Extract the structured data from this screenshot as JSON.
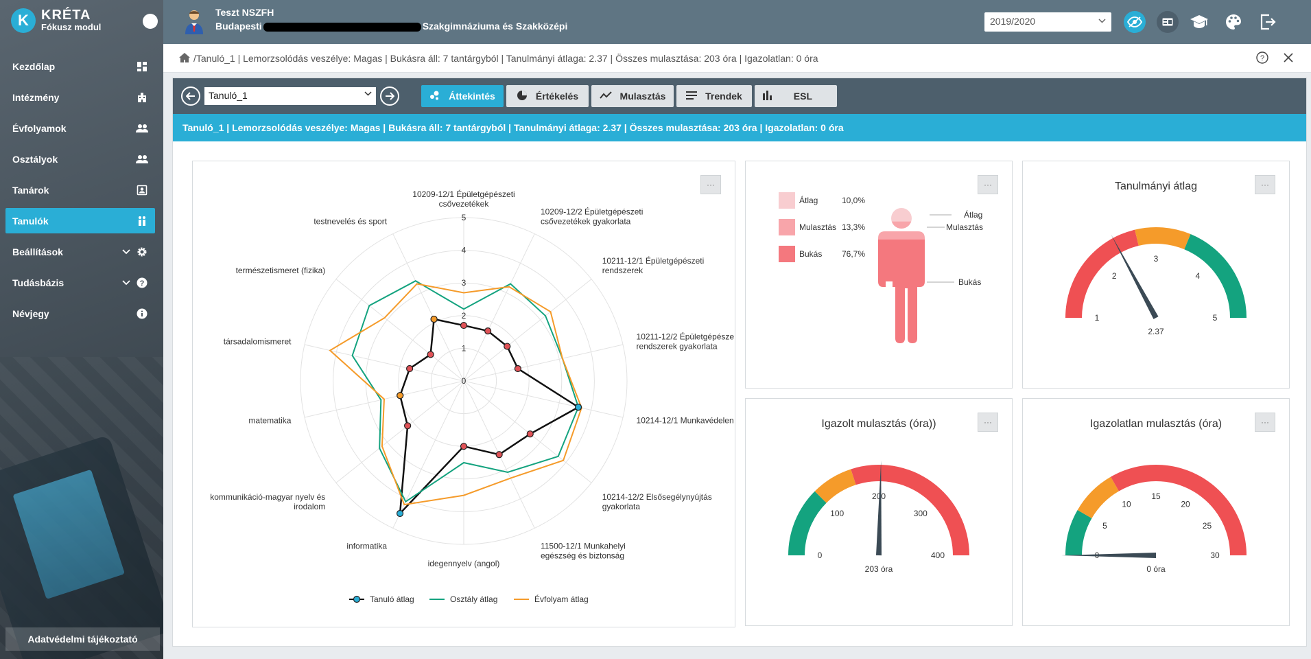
{
  "brand": {
    "name": "KRÉTA",
    "subtitle": "Fókusz modul",
    "logo_letter": "K"
  },
  "sidebar": {
    "items": [
      {
        "label": "Kezdőlap",
        "icon": "dashboard-icon"
      },
      {
        "label": "Intézmény",
        "icon": "building-icon"
      },
      {
        "label": "Évfolyamok",
        "icon": "group-icon"
      },
      {
        "label": "Osztályok",
        "icon": "group-icon"
      },
      {
        "label": "Tanárok",
        "icon": "teacher-icon"
      },
      {
        "label": "Tanulók",
        "icon": "students-icon",
        "active": true
      },
      {
        "label": "Beállítások",
        "icon": "gear-icon",
        "expandable": true
      },
      {
        "label": "Tudásbázis",
        "icon": "help-icon",
        "expandable": true
      },
      {
        "label": "Névjegy",
        "icon": "info-icon"
      }
    ],
    "privacy_label": "Adatvédelmi tájékoztató"
  },
  "header": {
    "user_name": "Teszt NSZFH",
    "school_prefix": "Budapesti",
    "school_suffix": "Szakgimnáziuma és Szakközépi",
    "year": "2019/2020"
  },
  "breadcrumb": {
    "text": "Tanuló_1 | Lemorzsolódás veszélye: Magas | Bukásra áll: 7 tantárgyból | Tanulmányi átlaga: 2.37 | Összes mulasztása: 203 óra | Igazolatlan: 0 óra"
  },
  "toolbar": {
    "student": "Tanuló_1",
    "tabs": [
      {
        "label": "Áttekintés",
        "icon": "overview-icon",
        "active": true
      },
      {
        "label": "Értékelés",
        "icon": "pie-icon"
      },
      {
        "label": "Mulasztás",
        "icon": "trend-icon"
      },
      {
        "label": "Trendek",
        "icon": "list-icon"
      },
      {
        "label": "ESL",
        "icon": "bar-icon"
      }
    ]
  },
  "infobar": {
    "text": "Tanuló_1 | Lemorzsolódás veszélye: Magas | Bukásra áll: 7 tantárgyból | Tanulmányi átlaga: 2.37 | Összes mulasztása: 203 óra | Igazolatlan: 0 óra"
  },
  "menu_label": "···",
  "chart_data": [
    {
      "type": "radar",
      "categories": [
        "10209-12/1 Épületgépészeti csővezetékek",
        "10209-12/2 Épületgépészeti csővezetékek gyakorlata",
        "10211-12/1 Épületgépészeti rendszerek",
        "10211-12/2 Épületgépésze rendszerek gyakorlata",
        "10214-12/1 Munkavédelen",
        "10214-12/2 Elsősegélynyújtás gyakorlata",
        "11500-12/1 Munkahelyi egészség és biztonság",
        "idegennyelv (angol)",
        "informatika",
        "kommunikáció-magyar nyelv és irodalom",
        "matematika",
        "társadalomismeret",
        "természetismeret (fizika)",
        "testnevelés és sport"
      ],
      "rlim": [
        0,
        5
      ],
      "rticks": [
        "0",
        "1",
        "2",
        "3",
        "4",
        "5"
      ],
      "series": [
        {
          "name": "Tanuló átlag",
          "color": "#111111",
          "values": [
            1.7,
            1.7,
            1.7,
            1.7,
            3.6,
            2.6,
            2.5,
            2.0,
            4.5,
            2.2,
            2.0,
            1.7,
            1.3,
            2.1
          ]
        },
        {
          "name": "Osztály átlag",
          "color": "#14a37f",
          "values": [
            2.2,
            3.3,
            3.2,
            3.1,
            3.6,
            3.7,
            3.1,
            2.5,
            4.1,
            3.3,
            2.6,
            3.5,
            3.7,
            3.4
          ]
        },
        {
          "name": "Évfolyam átlag",
          "color": "#f59b2a",
          "values": [
            2.7,
            3.2,
            3.4,
            3.1,
            3.7,
            3.9,
            3.3,
            3.5,
            4.2,
            3.2,
            2.5,
            4.2,
            3.1,
            3.3
          ]
        }
      ]
    },
    {
      "type": "pictograph",
      "series": [
        {
          "name": "Átlag",
          "value_label": "10,0%",
          "value": 10.0,
          "color": "#f8cdd0"
        },
        {
          "name": "Mulasztás",
          "value_label": "13,3%",
          "value": 13.3,
          "color": "#f8a5aa"
        },
        {
          "name": "Bukás",
          "value_label": "76,7%",
          "value": 76.7,
          "color": "#f4787e"
        }
      ]
    },
    {
      "type": "gauge",
      "title": "Tanulmányi átlag",
      "min": 1,
      "max": 5,
      "ticks": [
        "1",
        "2",
        "3",
        "4",
        "5"
      ],
      "bands": [
        {
          "from": 1,
          "to": 2.7,
          "color": "#ef5053"
        },
        {
          "from": 2.7,
          "to": 3.5,
          "color": "#f59b2a"
        },
        {
          "from": 3.5,
          "to": 5,
          "color": "#14a37f"
        }
      ],
      "value": 2.37,
      "value_label": "2.37"
    },
    {
      "type": "gauge",
      "title": "Igazolt mulasztás (óra))",
      "min": 0,
      "max": 400,
      "ticks": [
        "0",
        "100",
        "200",
        "300",
        "400"
      ],
      "bands": [
        {
          "from": 0,
          "to": 100,
          "color": "#14a37f"
        },
        {
          "from": 100,
          "to": 160,
          "color": "#f59b2a"
        },
        {
          "from": 160,
          "to": 400,
          "color": "#ef5053"
        }
      ],
      "value": 203,
      "value_label": "203 óra"
    },
    {
      "type": "gauge",
      "title": "Igazolatlan mulasztás (óra)",
      "min": 0,
      "max": 30,
      "ticks": [
        "0",
        "5",
        "10",
        "15",
        "20",
        "25",
        "30"
      ],
      "bands": [
        {
          "from": 0,
          "to": 5,
          "color": "#14a37f"
        },
        {
          "from": 5,
          "to": 10,
          "color": "#f59b2a"
        },
        {
          "from": 10,
          "to": 30,
          "color": "#ef5053"
        }
      ],
      "value": 0,
      "value_label": "0 óra"
    }
  ]
}
